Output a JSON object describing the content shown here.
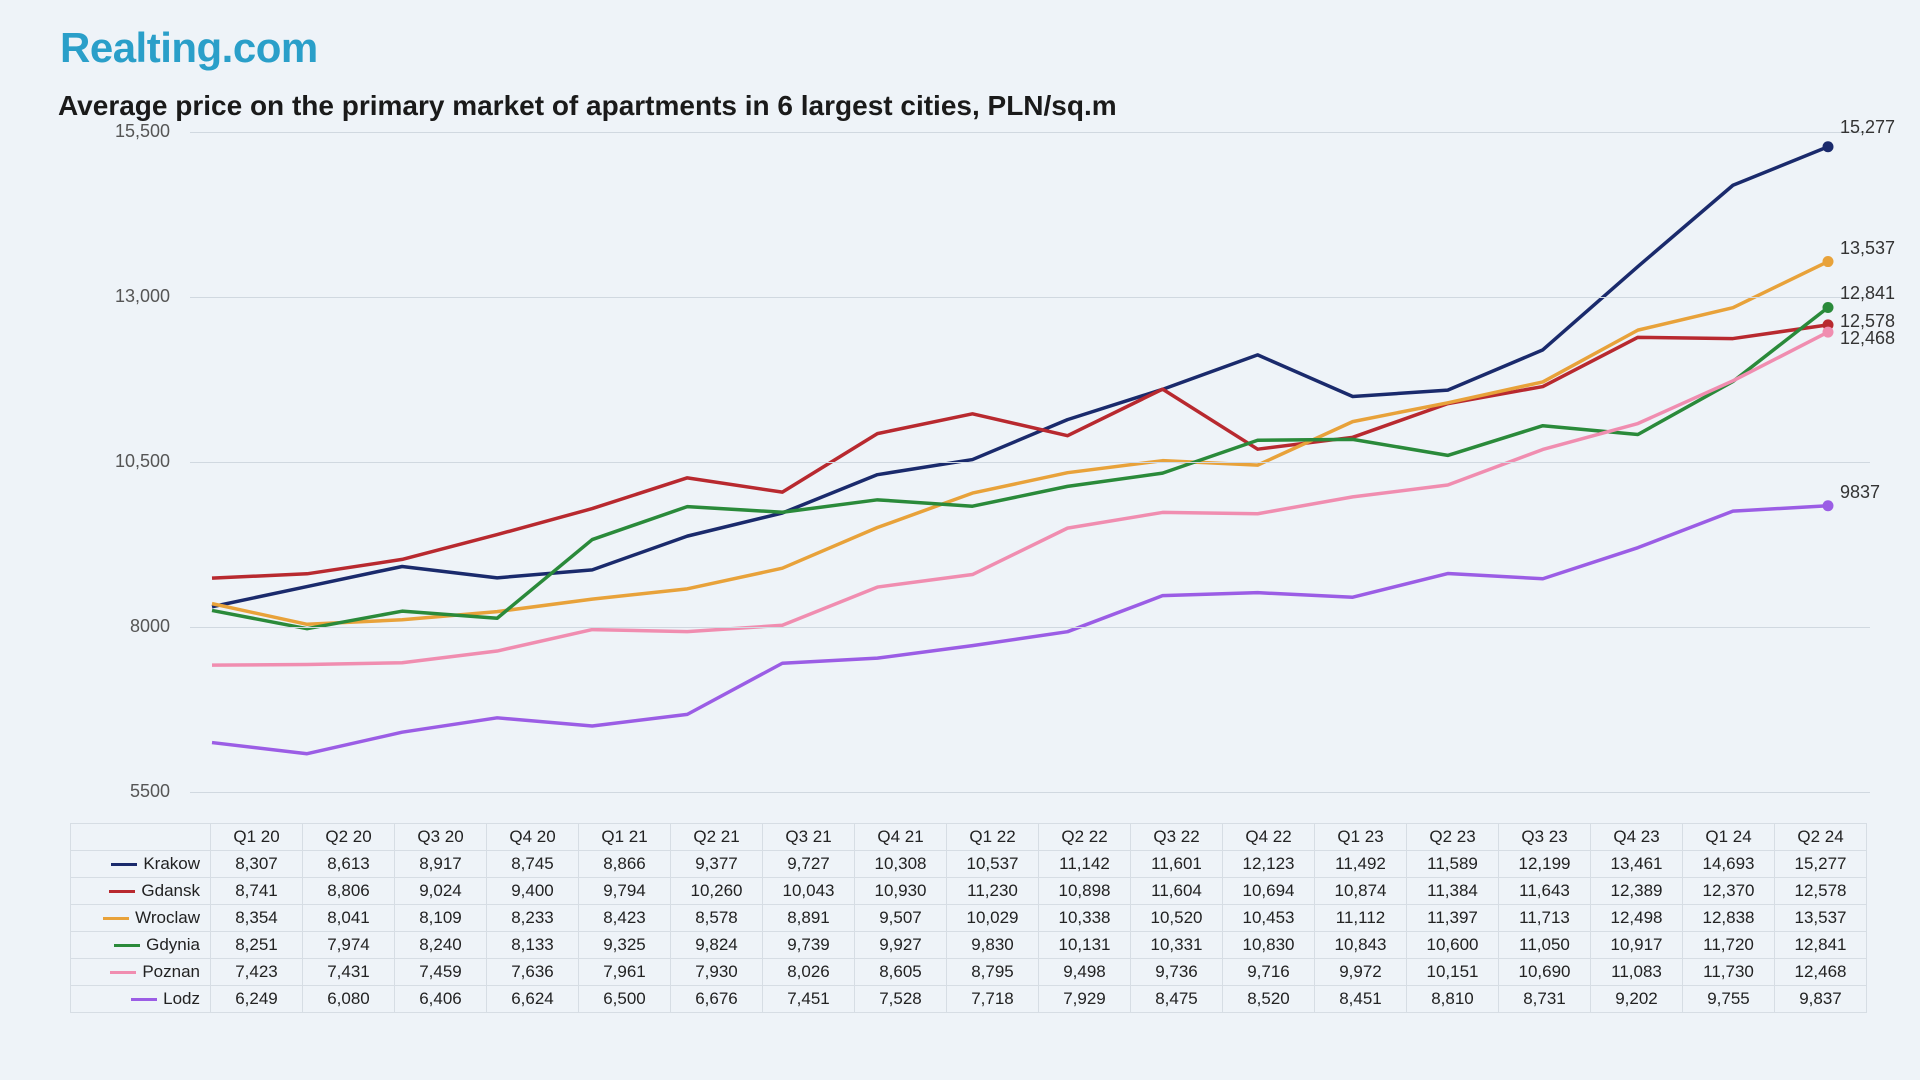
{
  "logo_text": "Realting.com",
  "title": "Average price on the primary market of apartments in 6 largest cities, PLN/sq.m",
  "chart": {
    "type": "line",
    "background_color": "#eef3f8",
    "grid_color": "#d0d8e0",
    "ylim": [
      5500,
      15500
    ],
    "yticks": [
      5500,
      8000,
      10500,
      13000,
      15500
    ],
    "ytick_labels": [
      "5500",
      "8000",
      "10,500",
      "13,000",
      "15,500"
    ],
    "categories": [
      "Q1 20",
      "Q2 20",
      "Q3 20",
      "Q4 20",
      "Q1 21",
      "Q2 21",
      "Q3 21",
      "Q4 21",
      "Q1 22",
      "Q2 22",
      "Q3 22",
      "Q4 22",
      "Q1 23",
      "Q2 23",
      "Q3 23",
      "Q4 23",
      "Q1 24",
      "Q2 24"
    ],
    "line_width": 3.5,
    "marker_radius": 5.5,
    "label_fontsize": 18,
    "series": [
      {
        "name": "Krakow",
        "color": "#1a2a6c",
        "data": [
          8307,
          8613,
          8917,
          8745,
          8866,
          9377,
          9727,
          10308,
          10537,
          11142,
          11601,
          12123,
          11492,
          11589,
          12199,
          13461,
          14693,
          15277
        ],
        "end_label": "15,277"
      },
      {
        "name": "Gdansk",
        "color": "#b8292f",
        "data": [
          8741,
          8806,
          9024,
          9400,
          9794,
          10260,
          10043,
          10930,
          11230,
          10898,
          11604,
          10694,
          10874,
          11384,
          11643,
          12389,
          12370,
          12578
        ],
        "end_label": "12,578"
      },
      {
        "name": "Wroclaw",
        "color": "#e8a23a",
        "data": [
          8354,
          8041,
          8109,
          8233,
          8423,
          8578,
          8891,
          9507,
          10029,
          10338,
          10520,
          10453,
          11112,
          11397,
          11713,
          12498,
          12838,
          13537
        ],
        "end_label": "13,537"
      },
      {
        "name": "Gdynia",
        "color": "#2a8a3a",
        "data": [
          8251,
          7974,
          8240,
          8133,
          9325,
          9824,
          9739,
          9927,
          9830,
          10131,
          10331,
          10830,
          10843,
          10600,
          11050,
          10917,
          11720,
          12841
        ],
        "end_label": "12,841"
      },
      {
        "name": "Poznan",
        "color": "#f08db0",
        "data": [
          7423,
          7431,
          7459,
          7636,
          7961,
          7930,
          8026,
          8605,
          8795,
          9498,
          9736,
          9716,
          9972,
          10151,
          10690,
          11083,
          11730,
          12468
        ],
        "end_label": "12,468"
      },
      {
        "name": "Lodz",
        "color": "#9b5de5",
        "data": [
          6249,
          6080,
          6406,
          6624,
          6500,
          6676,
          7451,
          7528,
          7718,
          7929,
          8475,
          8520,
          8451,
          8810,
          8731,
          9202,
          9755,
          9837
        ],
        "end_label": "9837"
      }
    ]
  }
}
